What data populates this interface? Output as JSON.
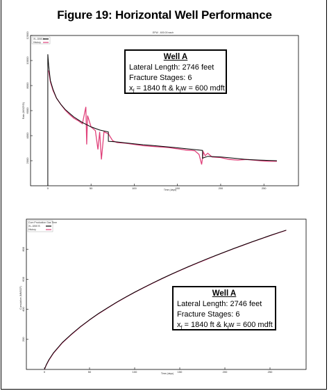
{
  "figure_title": "Figure 19: Horizontal Well Performance",
  "top_chart": {
    "header_label": "EFW - 600.00 each",
    "legend": [
      "XL-1840-b",
      "History"
    ],
    "info": {
      "title": "Well A",
      "line1": "Lateral Length: 2746 feet",
      "line2": "Fracture Stages: 6",
      "line3_x": "x",
      "line3_f": "f",
      "line3_mid": " = 1840 ft & k",
      "line3_f2": "f",
      "line3_end": "w = 600 mdft"
    }
  },
  "bottom_chart": {
    "legend": [
      "Cum Production Gas Time",
      "XL-1840 B",
      "History"
    ],
    "info": {
      "title": "Well A",
      "line1": "Lateral Length: 2746 feet",
      "line2": "Fracture Stages: 6",
      "line3_x": "x",
      "line3_f": "f",
      "line3_mid": " = 1840 ft & k",
      "line3_f2": "f",
      "line3_end": "w = 600 mdft"
    }
  },
  "colors": {
    "model": "#000000",
    "history": "#e0417a"
  },
  "chart_data": [
    {
      "type": "line",
      "title": "",
      "xlabel": "Time (days)",
      "ylabel": "Rate (MSCF/D)",
      "xlim": [
        -20,
        290
      ],
      "ylim": [
        0,
        12000
      ],
      "x_ticks": [
        0,
        50,
        100,
        150,
        200,
        250
      ],
      "y_ticks": [
        2000,
        4000,
        6000,
        8000,
        10000,
        12000
      ],
      "series": [
        {
          "name": "XL-1840-b",
          "x": [
            0,
            0,
            1,
            3,
            6,
            10,
            15,
            20,
            25,
            30,
            40,
            50,
            60,
            70,
            70,
            80,
            90,
            100,
            110,
            120,
            130,
            140,
            150,
            160,
            170,
            179,
            179,
            185,
            200,
            215,
            230,
            245,
            265
          ],
          "y": [
            0,
            10500,
            9600,
            8400,
            7700,
            7000,
            6500,
            6100,
            5800,
            5500,
            5050,
            4700,
            4450,
            4300,
            3550,
            3500,
            3420,
            3350,
            3280,
            3220,
            3160,
            3100,
            3030,
            2960,
            2890,
            2820,
            2200,
            2350,
            2300,
            2200,
            2100,
            2050,
            2000
          ]
        },
        {
          "name": "History",
          "x": [
            1,
            3,
            6,
            10,
            15,
            20,
            25,
            30,
            35,
            40,
            44,
            45,
            46,
            50,
            55,
            58,
            60,
            62,
            65,
            70,
            75,
            80,
            90,
            100,
            110,
            120,
            130,
            140,
            150,
            160,
            170,
            175,
            178,
            180,
            182,
            185,
            190,
            200,
            210,
            220,
            230,
            245,
            255,
            265
          ],
          "y": [
            9200,
            8300,
            7600,
            7000,
            6500,
            6050,
            5700,
            5400,
            5200,
            4950,
            6300,
            3300,
            5600,
            4700,
            4400,
            2900,
            4300,
            2100,
            4300,
            4150,
            3600,
            3450,
            3400,
            3300,
            3200,
            3150,
            3100,
            3050,
            2950,
            2850,
            2800,
            2500,
            1700,
            2700,
            2400,
            2600,
            2300,
            2250,
            2100,
            2050,
            2100,
            2000,
            1950,
            1950
          ]
        }
      ]
    },
    {
      "type": "line",
      "title": "",
      "xlabel": "Time (days)",
      "ylabel": "Cumulative (MMSCF)",
      "xlim": [
        -20,
        290
      ],
      "ylim": [
        0,
        1000
      ],
      "x_ticks": [
        0,
        50,
        100,
        150,
        200,
        250
      ],
      "y_ticks": [
        200,
        400,
        600,
        800
      ],
      "series": [
        {
          "name": "XL-1840 B",
          "x": [
            0,
            2,
            5,
            10,
            20,
            30,
            40,
            50,
            60,
            70,
            80,
            90,
            100,
            110,
            120,
            130,
            140,
            150,
            160,
            170,
            180,
            190,
            200,
            210,
            220,
            230,
            240,
            250,
            260,
            268
          ],
          "y": [
            0,
            30,
            65,
            110,
            180,
            235,
            285,
            330,
            372,
            410,
            447,
            481,
            514,
            545,
            575,
            604,
            632,
            659,
            685,
            710,
            735,
            759,
            782,
            805,
            827,
            849,
            870,
            891,
            911,
            927
          ]
        },
        {
          "name": "History",
          "x": [
            0,
            2,
            5,
            10,
            20,
            30,
            40,
            50,
            60,
            70,
            80,
            90,
            100,
            110,
            120,
            130,
            140,
            150,
            160,
            170,
            180,
            190,
            200,
            210,
            220,
            230,
            240,
            250,
            260,
            268
          ],
          "y": [
            0,
            28,
            62,
            108,
            178,
            233,
            284,
            329,
            371,
            409,
            446,
            480,
            513,
            544,
            574,
            603,
            631,
            658,
            684,
            709,
            733,
            758,
            781,
            804,
            826,
            848,
            869,
            890,
            910,
            926
          ]
        }
      ]
    }
  ]
}
